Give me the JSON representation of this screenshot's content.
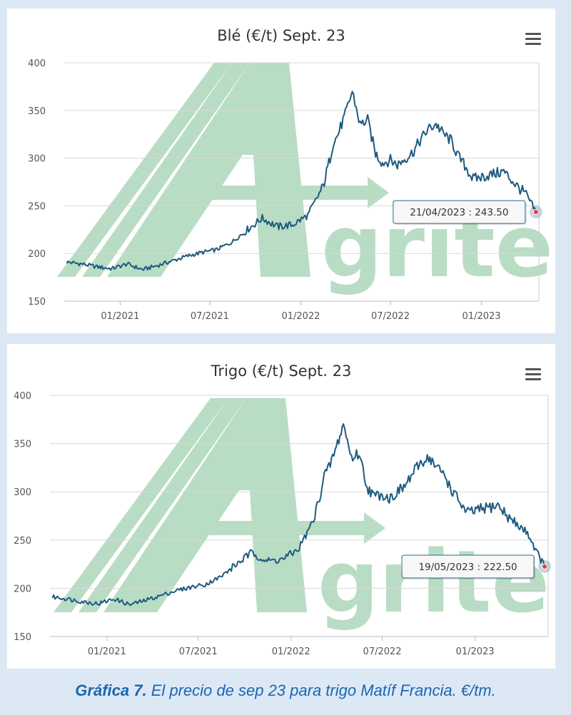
{
  "charts": [
    {
      "title": "Blé (€/t) Sept. 23",
      "tooltip": "21/04/2023 : 243.50"
    },
    {
      "title": "Trigo (€/t) Sept. 23",
      "tooltip": "19/05/2023 : 222.50"
    }
  ],
  "watermark": "Agritel",
  "menu_icon": "hamburger-menu-icon",
  "caption": {
    "bold": "Gráfica 7.",
    "text": " El precio de sep 23 para trigo Matíf Francia. €/tm."
  },
  "colors": {
    "line": "#1f5a7f",
    "watermark": "#b9dcc4",
    "caption": "#1a66b0",
    "marker": "#e53935"
  },
  "chart_data": [
    {
      "type": "line",
      "title": "Blé (€/t) Sept. 23",
      "xlabel": "",
      "ylabel": "",
      "ylim": [
        150,
        400
      ],
      "yticks": [
        150,
        200,
        250,
        300,
        350,
        400
      ],
      "xticks": [
        "01/2021",
        "07/2021",
        "01/2022",
        "07/2022",
        "01/2023"
      ],
      "grid": true,
      "series": [
        {
          "x": [
            "2020-09-15",
            "2020-10-15",
            "2020-11-15",
            "2020-12-15",
            "2021-01-15",
            "2021-02-15",
            "2021-03-15",
            "2021-04-15",
            "2021-05-15",
            "2021-06-15",
            "2021-07-15",
            "2021-08-15",
            "2021-09-15",
            "2021-10-15",
            "2021-11-15",
            "2021-12-15",
            "2022-01-15",
            "2022-02-15",
            "2022-03-01",
            "2022-03-08",
            "2022-03-15",
            "2022-04-01",
            "2022-04-15",
            "2022-05-01",
            "2022-05-16",
            "2022-06-01",
            "2022-06-15",
            "2022-07-01",
            "2022-07-15",
            "2022-08-01",
            "2022-08-15",
            "2022-09-01",
            "2022-09-15",
            "2022-10-01",
            "2022-10-15",
            "2022-11-01",
            "2022-11-15",
            "2022-12-01",
            "2022-12-15",
            "2023-01-15",
            "2023-02-15",
            "2023-03-15",
            "2023-04-01",
            "2023-04-21"
          ],
          "y": [
            191,
            189,
            186,
            184,
            189,
            183,
            187,
            192,
            197,
            201,
            204,
            212,
            225,
            237,
            228,
            230,
            240,
            270,
            300,
            318,
            322,
            346,
            370,
            335,
            340,
            305,
            295,
            298,
            293,
            300,
            306,
            320,
            330,
            336,
            326,
            318,
            302,
            290,
            278,
            282,
            286,
            270,
            262,
            243.5
          ]
        }
      ]
    },
    {
      "type": "line",
      "title": "Trigo (€/t) Sept. 23",
      "xlabel": "",
      "ylabel": "",
      "ylim": [
        150,
        400
      ],
      "yticks": [
        150,
        200,
        250,
        300,
        350,
        400
      ],
      "xticks": [
        "01/2021",
        "07/2021",
        "01/2022",
        "07/2022",
        "01/2023"
      ],
      "grid": true,
      "series": [
        {
          "x": [
            "2020-09-15",
            "2020-10-15",
            "2020-11-15",
            "2020-12-15",
            "2021-01-15",
            "2021-02-15",
            "2021-03-15",
            "2021-04-15",
            "2021-05-15",
            "2021-06-15",
            "2021-07-15",
            "2021-08-15",
            "2021-09-15",
            "2021-10-15",
            "2021-11-15",
            "2021-12-15",
            "2022-01-15",
            "2022-02-15",
            "2022-03-01",
            "2022-03-08",
            "2022-03-15",
            "2022-04-01",
            "2022-04-15",
            "2022-05-01",
            "2022-05-16",
            "2022-06-01",
            "2022-06-15",
            "2022-07-01",
            "2022-07-15",
            "2022-08-01",
            "2022-08-15",
            "2022-09-01",
            "2022-09-15",
            "2022-10-01",
            "2022-10-15",
            "2022-11-01",
            "2022-11-15",
            "2022-12-01",
            "2022-12-15",
            "2023-01-15",
            "2023-02-15",
            "2023-03-15",
            "2023-04-15",
            "2023-05-01",
            "2023-05-19"
          ],
          "y": [
            191,
            189,
            186,
            184,
            189,
            183,
            187,
            192,
            197,
            201,
            204,
            212,
            225,
            237,
            228,
            230,
            240,
            270,
            300,
            318,
            322,
            346,
            370,
            335,
            340,
            305,
            295,
            298,
            293,
            300,
            306,
            320,
            330,
            336,
            326,
            318,
            302,
            290,
            278,
            282,
            286,
            270,
            258,
            240,
            222.5
          ]
        }
      ]
    }
  ]
}
